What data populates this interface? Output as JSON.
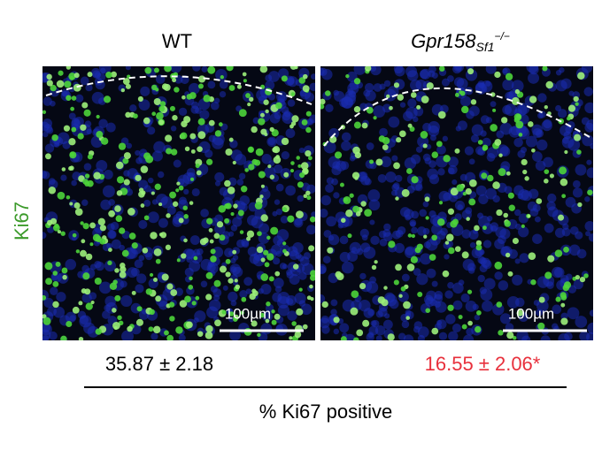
{
  "columns": [
    {
      "label": "WT"
    },
    {
      "label": "Gpr158",
      "subscript": "Sf1",
      "superscript": "−/−"
    }
  ],
  "row_label": "Ki67",
  "scale_bars": [
    "100µm",
    "100µm"
  ],
  "results": [
    "35.87 ± 2.18",
    "16.55 ± 2.06*"
  ],
  "measure_label": "% Ki67 positive"
}
